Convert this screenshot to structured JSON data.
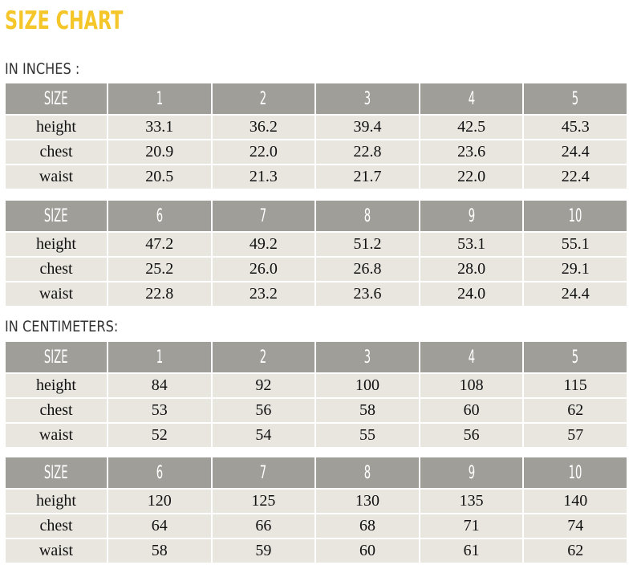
{
  "title": "SIZE CHART",
  "sections": [
    {
      "heading": "IN INCHES :",
      "tables": [
        {
          "header": [
            "SIZE",
            "1",
            "2",
            "3",
            "4",
            "5"
          ],
          "rows": [
            [
              "height",
              "33.1",
              "36.2",
              "39.4",
              "42.5",
              "45.3"
            ],
            [
              "chest",
              "20.9",
              "22.0",
              "22.8",
              "23.6",
              "24.4"
            ],
            [
              "waist",
              "20.5",
              "21.3",
              "21.7",
              "22.0",
              "22.4"
            ]
          ]
        },
        {
          "header": [
            "SIZE",
            "6",
            "7",
            "8",
            "9",
            "10"
          ],
          "rows": [
            [
              "height",
              "47.2",
              "49.2",
              "51.2",
              "53.1",
              "55.1"
            ],
            [
              "chest",
              "25.2",
              "26.0",
              "26.8",
              "28.0",
              "29.1"
            ],
            [
              "waist",
              "22.8",
              "23.2",
              "23.6",
              "24.0",
              "24.4"
            ]
          ]
        }
      ]
    },
    {
      "heading": "IN CENTIMETERS:",
      "tables": [
        {
          "header": [
            "SIZE",
            "1",
            "2",
            "3",
            "4",
            "5"
          ],
          "rows": [
            [
              "height",
              "84",
              "92",
              "100",
              "108",
              "115"
            ],
            [
              "chest",
              "53",
              "56",
              "58",
              "60",
              "62"
            ],
            [
              "waist",
              "52",
              "54",
              "55",
              "56",
              "57"
            ]
          ]
        },
        {
          "header": [
            "SIZE",
            "6",
            "7",
            "8",
            "9",
            "10"
          ],
          "rows": [
            [
              "height",
              "120",
              "125",
              "130",
              "135",
              "140"
            ],
            [
              "chest",
              "64",
              "66",
              "68",
              "71",
              "74"
            ],
            [
              "waist",
              "58",
              "59",
              "60",
              "61",
              "62"
            ]
          ]
        }
      ]
    }
  ]
}
